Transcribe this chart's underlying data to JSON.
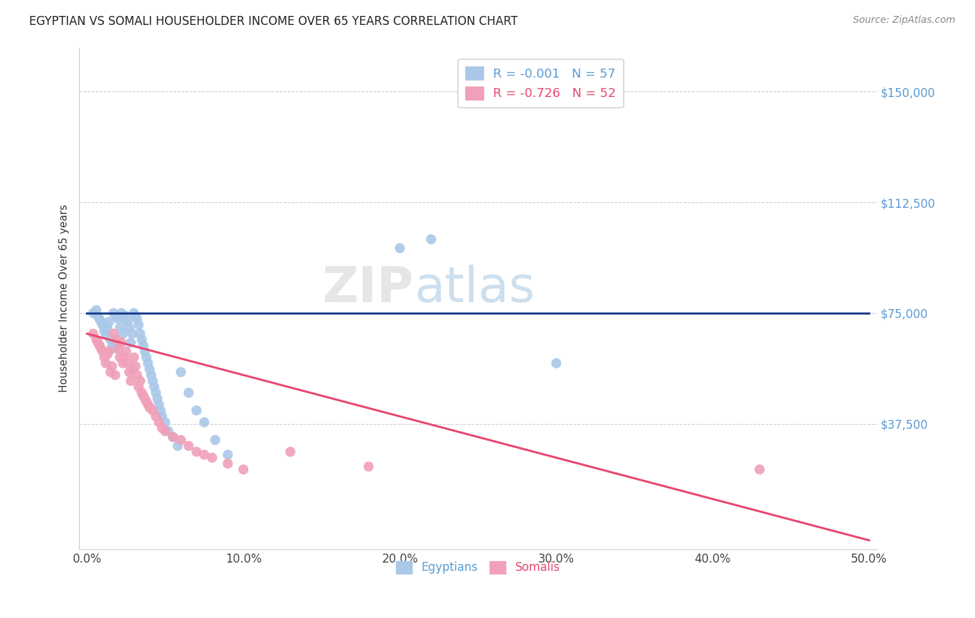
{
  "title": "EGYPTIAN VS SOMALI HOUSEHOLDER INCOME OVER 65 YEARS CORRELATION CHART",
  "source": "Source: ZipAtlas.com",
  "ylabel": "Householder Income Over 65 years",
  "xlabel_ticks": [
    "0.0%",
    "10.0%",
    "20.0%",
    "30.0%",
    "40.0%",
    "50.0%"
  ],
  "xlabel_vals": [
    0.0,
    0.1,
    0.2,
    0.3,
    0.4,
    0.5
  ],
  "ylabel_ticks": [
    "$37,500",
    "$75,000",
    "$112,500",
    "$150,000"
  ],
  "ylabel_vals": [
    37500,
    75000,
    112500,
    150000
  ],
  "xlim": [
    -0.005,
    0.505
  ],
  "ylim": [
    -5000,
    165000
  ],
  "legend_line1": "R = -0.001   N = 57",
  "legend_line2": "R = -0.726   N = 52",
  "legend_label1": "Egyptians",
  "legend_label2": "Somalis",
  "egyptian_color": "#aac8e8",
  "somali_color": "#f0a0b8",
  "egyptian_line_color": "#1a3f8f",
  "somali_line_color": "#e84870",
  "eg_line_y0": 75000,
  "eg_line_y1": 75000,
  "som_line_y0": 68000,
  "som_line_y1": -2000,
  "egyptians_x": [
    0.004,
    0.006,
    0.007,
    0.008,
    0.009,
    0.01,
    0.011,
    0.012,
    0.013,
    0.014,
    0.015,
    0.016,
    0.017,
    0.018,
    0.019,
    0.02,
    0.021,
    0.022,
    0.023,
    0.024,
    0.025,
    0.026,
    0.027,
    0.028,
    0.029,
    0.03,
    0.031,
    0.032,
    0.033,
    0.034,
    0.035,
    0.036,
    0.037,
    0.038,
    0.039,
    0.04,
    0.041,
    0.042,
    0.043,
    0.044,
    0.045,
    0.046,
    0.047,
    0.048,
    0.05,
    0.052,
    0.055,
    0.058,
    0.06,
    0.065,
    0.07,
    0.075,
    0.082,
    0.09,
    0.2,
    0.22,
    0.3
  ],
  "egyptians_y": [
    75000,
    76000,
    74000,
    73000,
    72000,
    71000,
    69000,
    68000,
    70000,
    72000,
    66000,
    64000,
    75000,
    63000,
    74000,
    73000,
    70000,
    75000,
    68000,
    73000,
    74000,
    72000,
    70000,
    65000,
    68000,
    75000,
    74000,
    73000,
    71000,
    68000,
    66000,
    64000,
    62000,
    60000,
    58000,
    56000,
    54000,
    52000,
    50000,
    48000,
    46000,
    44000,
    42000,
    40000,
    38000,
    35000,
    33000,
    30000,
    55000,
    48000,
    42000,
    38000,
    32000,
    27000,
    97000,
    100000,
    58000
  ],
  "somalis_x": [
    0.004,
    0.006,
    0.007,
    0.008,
    0.009,
    0.01,
    0.011,
    0.012,
    0.013,
    0.014,
    0.015,
    0.016,
    0.017,
    0.018,
    0.019,
    0.02,
    0.021,
    0.022,
    0.023,
    0.024,
    0.025,
    0.026,
    0.027,
    0.028,
    0.029,
    0.03,
    0.031,
    0.032,
    0.033,
    0.034,
    0.035,
    0.036,
    0.037,
    0.038,
    0.039,
    0.04,
    0.042,
    0.044,
    0.046,
    0.048,
    0.05,
    0.055,
    0.06,
    0.065,
    0.07,
    0.075,
    0.08,
    0.09,
    0.1,
    0.13,
    0.18,
    0.43
  ],
  "somalis_y": [
    68000,
    66000,
    65000,
    64000,
    63000,
    62000,
    60000,
    58000,
    61000,
    62000,
    55000,
    57000,
    68000,
    54000,
    66000,
    63000,
    60000,
    65000,
    58000,
    60000,
    62000,
    58000,
    55000,
    52000,
    56000,
    60000,
    57000,
    54000,
    50000,
    52000,
    48000,
    47000,
    46000,
    45000,
    44000,
    43000,
    42000,
    40000,
    38000,
    36000,
    35000,
    33000,
    32000,
    30000,
    28000,
    27000,
    26000,
    24000,
    22000,
    28000,
    23000,
    22000
  ]
}
